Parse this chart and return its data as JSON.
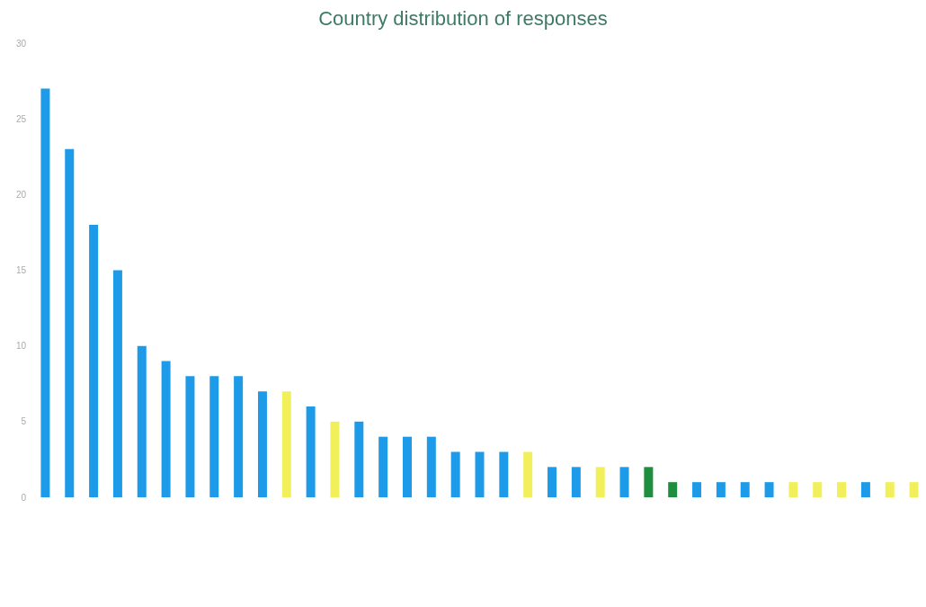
{
  "chart_data": {
    "type": "bar",
    "title": "Country distribution of responses",
    "categories": [
      null,
      null,
      null,
      null,
      null,
      null,
      null,
      null,
      null,
      null,
      null,
      null,
      null,
      null,
      null,
      null,
      null,
      null,
      null,
      null,
      null,
      null,
      null,
      null,
      null,
      null,
      null,
      null,
      null,
      null,
      null,
      null,
      null,
      null,
      null,
      null,
      null
    ],
    "values": [
      27,
      23,
      18,
      15,
      10,
      9,
      8,
      8,
      8,
      7,
      7,
      6,
      5,
      5,
      4,
      4,
      4,
      3,
      3,
      3,
      3,
      2,
      2,
      2,
      2,
      2,
      1,
      1,
      1,
      1,
      1,
      1,
      1,
      1,
      1,
      1,
      1
    ],
    "colors": [
      "#1e9be8",
      "#1e9be8",
      "#1e9be8",
      "#1e9be8",
      "#1e9be8",
      "#1e9be8",
      "#1e9be8",
      "#1e9be8",
      "#1e9be8",
      "#1e9be8",
      "#f2f05a",
      "#1e9be8",
      "#f2f05a",
      "#1e9be8",
      "#1e9be8",
      "#1e9be8",
      "#1e9be8",
      "#1e9be8",
      "#1e9be8",
      "#1e9be8",
      "#f2f05a",
      "#1e9be8",
      "#1e9be8",
      "#f2f05a",
      "#1e9be8",
      "#1f8f3f",
      "#1f8f3f",
      "#1e9be8",
      "#1e9be8",
      "#1e9be8",
      "#1e9be8",
      "#f2f05a",
      "#f2f05a",
      "#f2f05a",
      "#1e9be8",
      "#f2f05a",
      "#f2f05a"
    ],
    "ylim": [
      0,
      30
    ],
    "yticks": [
      0,
      5,
      10,
      15,
      20,
      25,
      30
    ],
    "grid": false
  }
}
